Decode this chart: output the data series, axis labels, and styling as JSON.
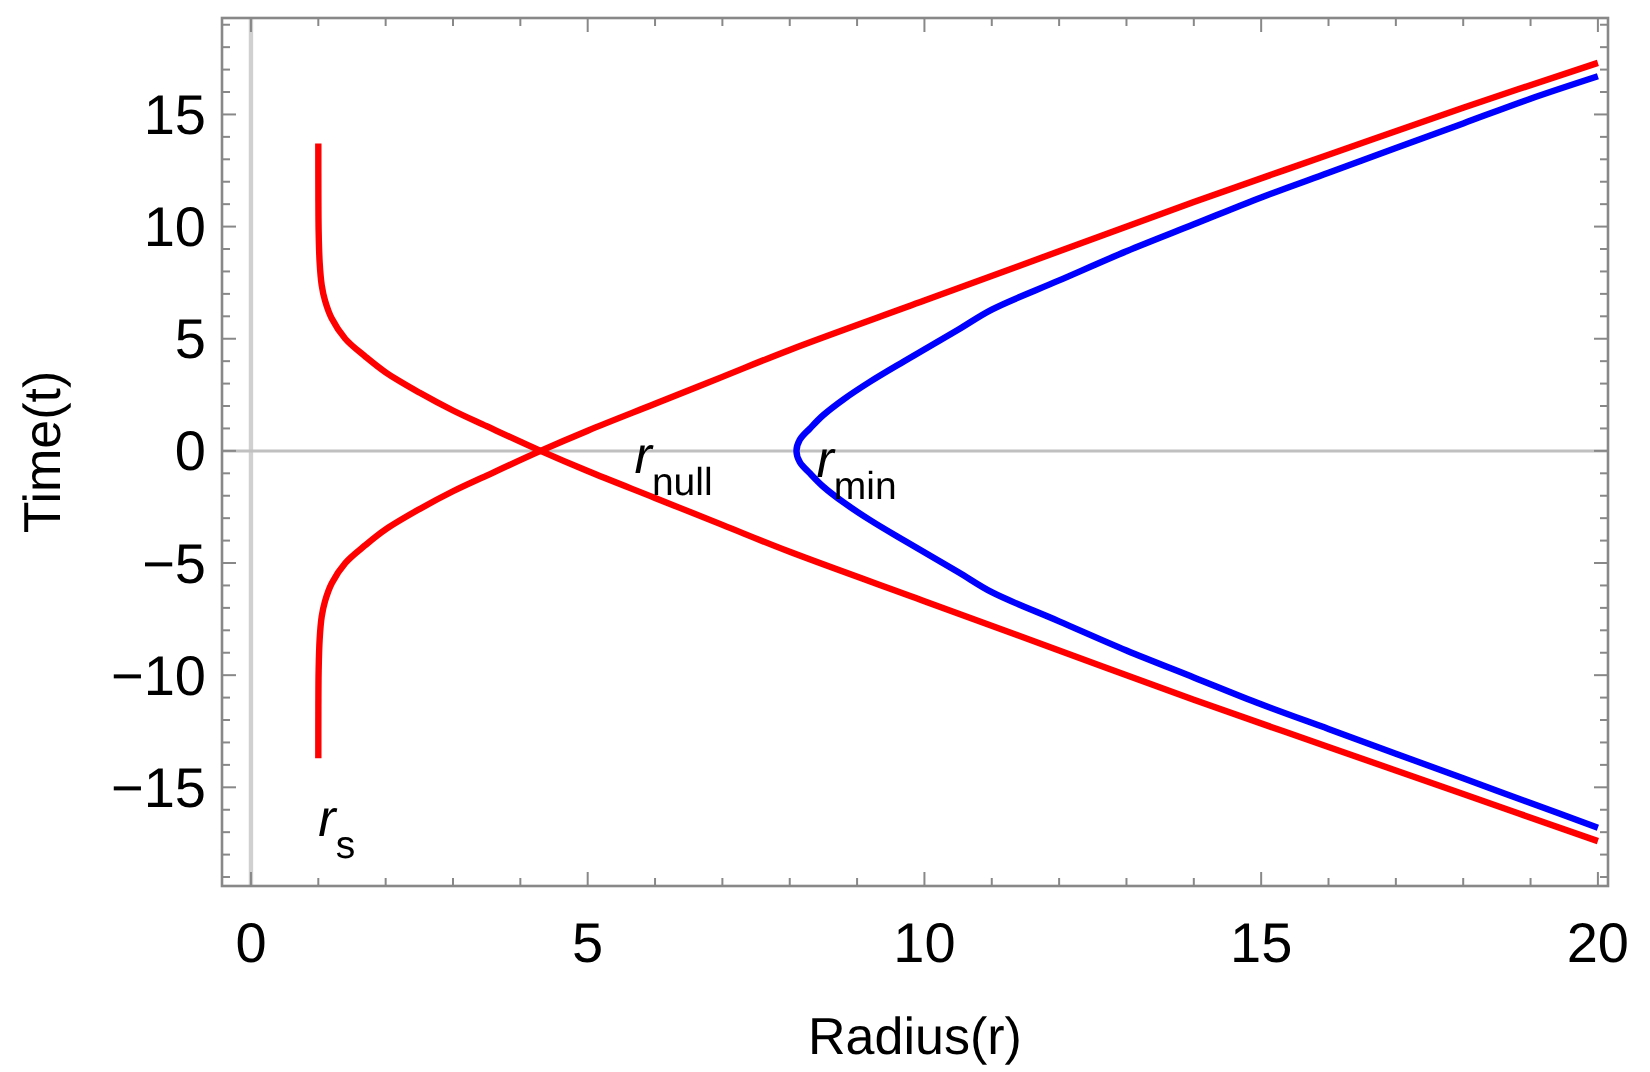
{
  "chart_data": {
    "type": "line",
    "xlabel": "Radius(r)",
    "ylabel": "Time(t)",
    "xlim": [
      -0.43,
      20.15
    ],
    "ylim": [
      -19.4,
      19.3
    ],
    "xticks": [
      0,
      {
        "value": 1,
        "label": null
      },
      {
        "value": 2,
        "label": null
      },
      {
        "value": 3,
        "label": null
      },
      {
        "value": 4,
        "label": null
      },
      5,
      {
        "value": 6,
        "label": null
      },
      {
        "value": 7,
        "label": null
      },
      {
        "value": 8,
        "label": null
      },
      {
        "value": 9,
        "label": null
      },
      10,
      {
        "value": 11,
        "label": null
      },
      {
        "value": 12,
        "label": null
      },
      {
        "value": 13,
        "label": null
      },
      {
        "value": 14,
        "label": null
      },
      15,
      {
        "value": 16,
        "label": null
      },
      {
        "value": 17,
        "label": null
      },
      {
        "value": 18,
        "label": null
      },
      {
        "value": 19,
        "label": null
      },
      20
    ],
    "yticks": [
      {
        "value": -19,
        "label": null
      },
      {
        "value": -18,
        "label": null
      },
      {
        "value": -17,
        "label": null
      },
      {
        "value": -16,
        "label": null
      },
      {
        "value": -15,
        "label": "−15"
      },
      {
        "value": -14,
        "label": null
      },
      {
        "value": -13,
        "label": null
      },
      {
        "value": -12,
        "label": null
      },
      {
        "value": -11,
        "label": null
      },
      {
        "value": -10,
        "label": "−10"
      },
      {
        "value": -9,
        "label": null
      },
      {
        "value": -8,
        "label": null
      },
      {
        "value": -7,
        "label": null
      },
      {
        "value": -6,
        "label": null
      },
      {
        "value": -5,
        "label": "−5"
      },
      {
        "value": -4,
        "label": null
      },
      {
        "value": -3,
        "label": null
      },
      {
        "value": -2,
        "label": null
      },
      {
        "value": -1,
        "label": null
      },
      0,
      {
        "value": 1,
        "label": null
      },
      {
        "value": 2,
        "label": null
      },
      {
        "value": 3,
        "label": null
      },
      {
        "value": 4,
        "label": null
      },
      5,
      {
        "value": 6,
        "label": null
      },
      {
        "value": 7,
        "label": null
      },
      {
        "value": 8,
        "label": null
      },
      {
        "value": 9,
        "label": null
      },
      10,
      {
        "value": 11,
        "label": null
      },
      {
        "value": 12,
        "label": null
      },
      {
        "value": 13,
        "label": null
      },
      {
        "value": 14,
        "label": null
      },
      15,
      {
        "value": 16,
        "label": null
      },
      {
        "value": 17,
        "label": null
      },
      {
        "value": 18,
        "label": null
      },
      {
        "value": 19,
        "label": null
      }
    ],
    "grid": false,
    "marker": "none",
    "line_style": "solid",
    "series": [
      {
        "color": "#ff0000",
        "x": [
          1.0001,
          1.001,
          1.005,
          1.02,
          1.05,
          1.1,
          1.2,
          1.4,
          1.7,
          2,
          2.5,
          3,
          3.5,
          4.3,
          5,
          6,
          7,
          8,
          10,
          12,
          14,
          16,
          18,
          20
        ],
        "values": [
          13.7,
          11.4,
          9.8,
          8.4,
          7.4,
          6.7,
          5.9,
          5.0,
          4.2,
          3.5,
          2.6,
          1.8,
          1.1,
          0,
          -0.9,
          -2.1,
          -3.3,
          -4.5,
          -6.7,
          -8.9,
          -11.1,
          -13.2,
          -15.3,
          -17.4
        ]
      },
      {
        "color": "#ff0000",
        "x": [
          1.0001,
          1.001,
          1.005,
          1.02,
          1.05,
          1.1,
          1.2,
          1.4,
          1.7,
          2,
          2.5,
          3,
          3.5,
          4.3,
          5,
          6,
          7,
          8,
          10,
          12,
          14,
          16,
          18,
          20
        ],
        "values": [
          -13.7,
          -11.4,
          -9.8,
          -8.4,
          -7.4,
          -6.7,
          -5.9,
          -5.0,
          -4.2,
          -3.5,
          -2.6,
          -1.8,
          -1.1,
          0,
          0.9,
          2.1,
          3.3,
          4.5,
          6.7,
          8.9,
          11.1,
          13.2,
          15.3,
          17.3
        ]
      },
      {
        "color": "#0000ff",
        "x": [
          20,
          19,
          18,
          17,
          16,
          15,
          14,
          13,
          12,
          11,
          10.5,
          9.7,
          9.2,
          8.8,
          8.5,
          8.3,
          8.15,
          8.1,
          8.15,
          8.3,
          8.5,
          8.8,
          9.2,
          9.7,
          10.5,
          11,
          12,
          13,
          14,
          15,
          16,
          17,
          18,
          19,
          20
        ],
        "values": [
          -16.8,
          -15.7,
          -14.6,
          -13.5,
          -12.4,
          -11.3,
          -10.1,
          -8.9,
          -7.6,
          -6.3,
          -5.4,
          -4.0,
          -3.1,
          -2.3,
          -1.6,
          -1.0,
          -0.5,
          0,
          0.5,
          1.0,
          1.6,
          2.3,
          3.1,
          4.0,
          5.4,
          6.3,
          7.6,
          8.9,
          10.1,
          11.3,
          12.4,
          13.5,
          14.6,
          15.7,
          16.7
        ]
      }
    ],
    "annotations": [
      {
        "text": "r$_{s}$",
        "x": 1.0,
        "y": -13.7
      },
      {
        "text": "r$_{null}$",
        "x": 4.3,
        "y": 0
      },
      {
        "text": "r$_{min}$",
        "x": 8.1,
        "y": 0
      }
    ]
  }
}
